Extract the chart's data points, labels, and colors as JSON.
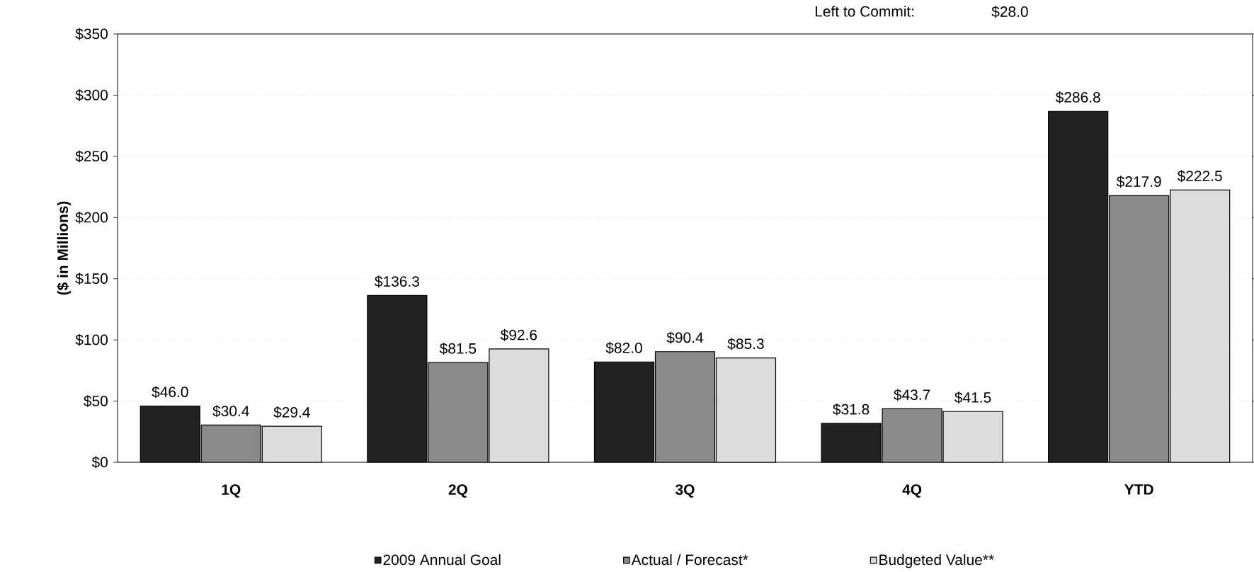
{
  "chart_data": {
    "type": "bar",
    "categories": [
      "1Q",
      "2Q",
      "3Q",
      "4Q",
      "YTD"
    ],
    "ylabel": "($ in Millions)",
    "series": [
      {
        "name": "2009 Annual Goal",
        "color": "#222222",
        "values": [
          46.0,
          136.3,
          82.0,
          31.8,
          286.8
        ],
        "value_labels": [
          "$46.0",
          "$136.3",
          "$82.0",
          "$31.8",
          "$286.8"
        ]
      },
      {
        "name": "Actual / Forecast*",
        "color": "#8a8a8a",
        "values": [
          30.4,
          81.5,
          90.4,
          43.7,
          217.9
        ],
        "value_labels": [
          "$30.4",
          "$81.5",
          "$90.4",
          "$43.7",
          "$217.9"
        ]
      },
      {
        "name": "Budgeted Value**",
        "color": "#dcdcdc",
        "values": [
          29.4,
          92.6,
          85.3,
          41.5,
          222.5
        ],
        "value_labels": [
          "$29.4",
          "$92.6",
          "$85.3",
          "$41.5",
          "$222.5"
        ]
      }
    ],
    "ylim": [
      0,
      350
    ],
    "yticks": [
      {
        "value": 0,
        "label": "$0"
      },
      {
        "value": 50,
        "label": "$50"
      },
      {
        "value": 100,
        "label": "$100"
      },
      {
        "value": 150,
        "label": "$150"
      },
      {
        "value": 200,
        "label": "$200"
      },
      {
        "value": 250,
        "label": "$250"
      },
      {
        "value": 300,
        "label": "$300"
      },
      {
        "value": 350,
        "label": "$350"
      }
    ],
    "grid": "y",
    "legend": "bottom",
    "annotations": [
      "Left to Commit:",
      "$28.0"
    ]
  }
}
